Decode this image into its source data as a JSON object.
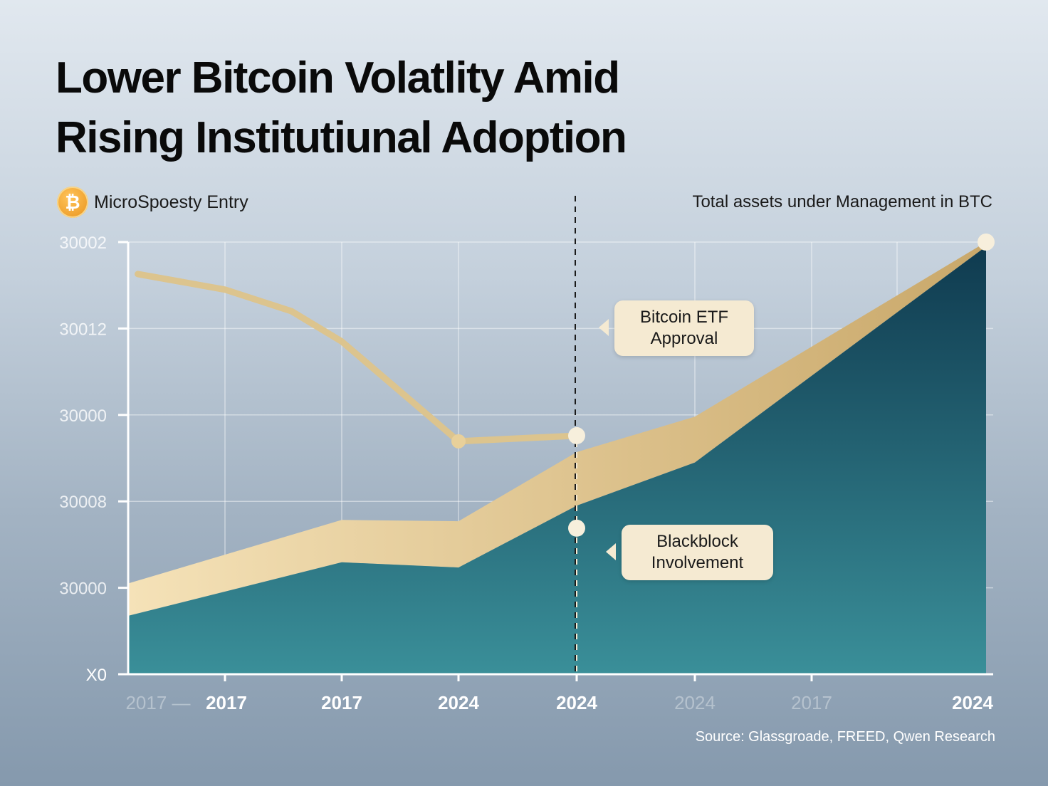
{
  "chart_data": {
    "type": "area",
    "title": "Lower Bitcoin Volatlity Amid Rising Institutiunal Adoption",
    "legend": {
      "left": "MicroSpoesty Entry",
      "right": "Total assets under Management in BTC",
      "icon": "bitcoin-icon"
    },
    "y_tick_labels": [
      "X0",
      "30000",
      "30008",
      "30000",
      "30012",
      "30002"
    ],
    "ylim": [
      0,
      100
    ],
    "x_tick_labels": [
      "2017 —",
      "2017",
      "2017",
      "2024",
      "2024",
      "2024",
      "2017",
      "2024"
    ],
    "x_tick_faded": [
      true,
      false,
      false,
      false,
      false,
      true,
      true,
      false
    ],
    "grid": true,
    "series": [
      {
        "kind": "area",
        "color": "#2f7f8c",
        "x": [
          0,
          3,
          4,
          5,
          6,
          7
        ],
        "values": [
          13.5,
          25.9,
          24.7,
          39,
          49,
          99
        ],
        "x_idx": [
          0,
          2,
          3,
          4,
          5,
          7
        ]
      },
      {
        "kind": "band",
        "color": "#e2c68f",
        "x_idx": [
          0,
          2,
          3,
          4,
          5,
          7
        ],
        "values": [
          21,
          35.7,
          35.4,
          51.4,
          59.6,
          100
        ]
      },
      {
        "kind": "line",
        "color": "#dcc48e",
        "x_idx": [
          0.1,
          1,
          1.57,
          2,
          3,
          4
        ],
        "values": [
          92.6,
          89,
          84,
          77,
          53.9,
          55.2
        ]
      }
    ],
    "markers": [
      {
        "x_idx": 4,
        "value": 55.2
      },
      {
        "x_idx": 4,
        "value": 33.8
      },
      {
        "x_idx": 7,
        "value": 100
      }
    ],
    "event_line_x_idx": 4,
    "annotations": [
      {
        "text": "Bitcoin ETF\nApproval"
      },
      {
        "text": "Blackblock\nInvolvement"
      }
    ],
    "source": "Source: Glassgroade, FREED, Qwen Research"
  }
}
